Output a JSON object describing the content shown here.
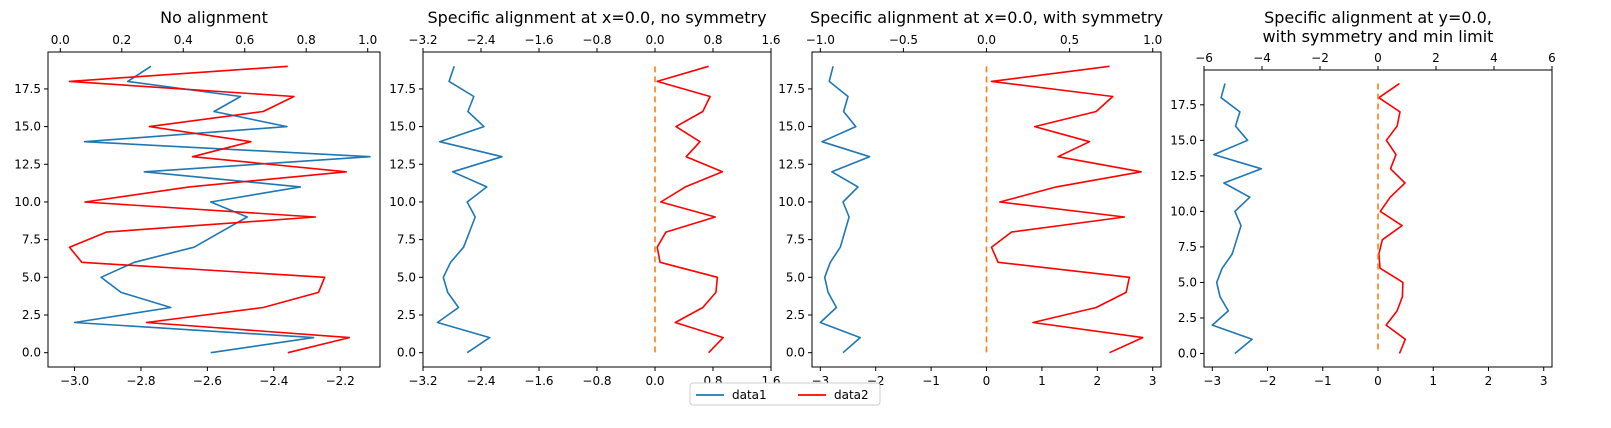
{
  "chart_data": [
    {
      "type": "line",
      "title": [
        "No alignment"
      ],
      "x_bottom": {
        "lim": [
          -3.08,
          -2.08
        ],
        "ticks": [
          -3.0,
          -2.8,
          -2.6,
          -2.4,
          -2.2
        ],
        "labels": [
          "−3.0",
          "−2.8",
          "−2.6",
          "−2.4",
          "−2.2"
        ]
      },
      "x_top": {
        "lim": [
          -0.04,
          1.04
        ],
        "ticks": [
          0.0,
          0.2,
          0.4,
          0.6,
          0.8,
          1.0
        ],
        "labels": [
          "0.0",
          "0.2",
          "0.4",
          "0.6",
          "0.8",
          "1.0"
        ]
      },
      "y": {
        "lim": [
          -0.95,
          19.95
        ],
        "ticks": [
          0,
          2.5,
          5,
          7.5,
          10,
          12.5,
          15,
          17.5
        ],
        "labels": [
          "0.0",
          "2.5",
          "5.0",
          "7.5",
          "10.0",
          "12.5",
          "15.0",
          "17.5"
        ]
      },
      "series": [
        {
          "name": "data1",
          "color": "#1f77b4",
          "axis": "bottom",
          "x": [
            -2.59,
            -2.28,
            -3.0,
            -2.71,
            -2.86,
            -2.92,
            -2.82,
            -2.64,
            -2.56,
            -2.48,
            -2.59,
            -2.32,
            -2.79,
            -2.11,
            -2.97,
            -2.36,
            -2.58,
            -2.5,
            -2.84,
            -2.77
          ],
          "y": [
            0,
            1,
            2,
            3,
            4,
            5,
            6,
            7,
            8,
            9,
            10,
            11,
            12,
            13,
            14,
            15,
            16,
            17,
            18,
            19
          ]
        },
        {
          "name": "data2",
          "color": "#ff0000",
          "axis": "top",
          "x": [
            0.74,
            0.94,
            0.28,
            0.66,
            0.84,
            0.86,
            0.07,
            0.03,
            0.15,
            0.83,
            0.08,
            0.42,
            0.93,
            0.43,
            0.62,
            0.29,
            0.66,
            0.76,
            0.03,
            0.74
          ],
          "y": [
            0,
            1,
            2,
            3,
            4,
            5,
            6,
            7,
            8,
            9,
            10,
            11,
            12,
            13,
            14,
            15,
            16,
            17,
            18,
            19
          ]
        }
      ]
    },
    {
      "type": "line",
      "title": [
        "Specific alignment at x=0.0, no symmetry"
      ],
      "x_bottom": {
        "lim": [
          -3.2,
          1.6
        ],
        "ticks": [
          -3.2,
          -2.4,
          -1.6,
          -0.8,
          0.0,
          0.8,
          1.6
        ],
        "labels": [
          "−3.2",
          "−2.4",
          "−1.6",
          "−0.8",
          "0.0",
          "0.8",
          "1.6"
        ]
      },
      "x_top": {
        "lim": [
          -3.2,
          1.6
        ],
        "ticks": [
          -3.2,
          -2.4,
          -1.6,
          -0.8,
          0.0,
          0.8,
          1.6
        ],
        "labels": [
          "−3.2",
          "−2.4",
          "−1.6",
          "−0.8",
          "0.0",
          "0.8",
          "1.6"
        ]
      },
      "y": {
        "lim": [
          -0.95,
          19.95
        ],
        "ticks": [
          0,
          2.5,
          5,
          7.5,
          10,
          12.5,
          15,
          17.5
        ],
        "labels": [
          "0.0",
          "2.5",
          "5.0",
          "7.5",
          "10.0",
          "12.5",
          "15.0",
          "17.5"
        ]
      },
      "vline": {
        "x": 0.0,
        "color": "#ff7f0e",
        "ymin": 0,
        "ymax": 19
      },
      "series": [
        {
          "name": "data1",
          "color": "#1f77b4",
          "axis": "bottom",
          "x": [
            -2.59,
            -2.28,
            -3.0,
            -2.71,
            -2.86,
            -2.92,
            -2.82,
            -2.64,
            -2.56,
            -2.48,
            -2.59,
            -2.32,
            -2.79,
            -2.11,
            -2.97,
            -2.36,
            -2.58,
            -2.5,
            -2.84,
            -2.77
          ],
          "y": [
            0,
            1,
            2,
            3,
            4,
            5,
            6,
            7,
            8,
            9,
            10,
            11,
            12,
            13,
            14,
            15,
            16,
            17,
            18,
            19
          ]
        },
        {
          "name": "data2",
          "color": "#ff0000",
          "axis": "top",
          "x": [
            0.74,
            0.94,
            0.28,
            0.66,
            0.84,
            0.86,
            0.07,
            0.03,
            0.15,
            0.83,
            0.08,
            0.42,
            0.93,
            0.43,
            0.62,
            0.29,
            0.66,
            0.76,
            0.03,
            0.74
          ],
          "y": [
            0,
            1,
            2,
            3,
            4,
            5,
            6,
            7,
            8,
            9,
            10,
            11,
            12,
            13,
            14,
            15,
            16,
            17,
            18,
            19
          ]
        }
      ]
    },
    {
      "type": "line",
      "title": [
        "Specific alignment at x=0.0, with symmetry"
      ],
      "x_bottom": {
        "lim": [
          -3.15,
          3.15
        ],
        "ticks": [
          -3,
          -2,
          -1,
          0,
          1,
          2,
          3
        ],
        "labels": [
          "−3",
          "−2",
          "−1",
          "0",
          "1",
          "2",
          "3"
        ]
      },
      "x_top": {
        "lim": [
          -1.05,
          1.05
        ],
        "ticks": [
          -1.0,
          -0.5,
          0.0,
          0.5,
          1.0
        ],
        "labels": [
          "−1.0",
          "−0.5",
          "0.0",
          "0.5",
          "1.0"
        ]
      },
      "y": {
        "lim": [
          -0.95,
          19.95
        ],
        "ticks": [
          0,
          2.5,
          5,
          7.5,
          10,
          12.5,
          15,
          17.5
        ],
        "labels": [
          "0.0",
          "2.5",
          "5.0",
          "7.5",
          "10.0",
          "12.5",
          "15.0",
          "17.5"
        ]
      },
      "vline": {
        "x": 0.0,
        "color": "#ff7f0e",
        "ymin": 0,
        "ymax": 19
      },
      "series": [
        {
          "name": "data1",
          "color": "#1f77b4",
          "axis": "bottom",
          "x": [
            -2.59,
            -2.28,
            -3.0,
            -2.71,
            -2.86,
            -2.92,
            -2.82,
            -2.64,
            -2.56,
            -2.48,
            -2.59,
            -2.32,
            -2.79,
            -2.11,
            -2.97,
            -2.36,
            -2.58,
            -2.5,
            -2.84,
            -2.77
          ],
          "y": [
            0,
            1,
            2,
            3,
            4,
            5,
            6,
            7,
            8,
            9,
            10,
            11,
            12,
            13,
            14,
            15,
            16,
            17,
            18,
            19
          ]
        },
        {
          "name": "data2",
          "color": "#ff0000",
          "axis": "top",
          "x": [
            0.74,
            0.94,
            0.28,
            0.66,
            0.84,
            0.86,
            0.07,
            0.03,
            0.15,
            0.83,
            0.08,
            0.42,
            0.93,
            0.43,
            0.62,
            0.29,
            0.66,
            0.76,
            0.03,
            0.74
          ],
          "y": [
            0,
            1,
            2,
            3,
            4,
            5,
            6,
            7,
            8,
            9,
            10,
            11,
            12,
            13,
            14,
            15,
            16,
            17,
            18,
            19
          ]
        }
      ]
    },
    {
      "type": "line",
      "title": [
        "Specific alignment at y=0.0,",
        "with symmetry and min limit"
      ],
      "x_bottom": {
        "lim": [
          -3.15,
          3.15
        ],
        "ticks": [
          -3,
          -2,
          -1,
          0,
          1,
          2,
          3
        ],
        "labels": [
          "−3",
          "−2",
          "−1",
          "0",
          "1",
          "2",
          "3"
        ]
      },
      "x_top": {
        "lim": [
          -6,
          6
        ],
        "ticks": [
          -6,
          -4,
          -2,
          0,
          2,
          4,
          6
        ],
        "labels": [
          "−6",
          "−4",
          "−2",
          "0",
          "2",
          "4",
          "6"
        ]
      },
      "y": {
        "lim": [
          -0.95,
          19.95
        ],
        "ticks": [
          0,
          2.5,
          5,
          7.5,
          10,
          12.5,
          15,
          17.5
        ],
        "labels": [
          "0.0",
          "2.5",
          "5.0",
          "7.5",
          "10.0",
          "12.5",
          "15.0",
          "17.5"
        ]
      },
      "vline": {
        "x": 0.0,
        "color": "#ff7f0e",
        "ymin": 0,
        "ymax": 19
      },
      "series": [
        {
          "name": "data1",
          "color": "#1f77b4",
          "axis": "bottom",
          "x": [
            -2.59,
            -2.28,
            -3.0,
            -2.71,
            -2.86,
            -2.92,
            -2.82,
            -2.64,
            -2.56,
            -2.48,
            -2.59,
            -2.32,
            -2.79,
            -2.11,
            -2.97,
            -2.36,
            -2.58,
            -2.5,
            -2.84,
            -2.77
          ],
          "y": [
            0,
            1,
            2,
            3,
            4,
            5,
            6,
            7,
            8,
            9,
            10,
            11,
            12,
            13,
            14,
            15,
            16,
            17,
            18,
            19
          ]
        },
        {
          "name": "data2",
          "color": "#ff0000",
          "axis": "top",
          "x": [
            0.74,
            0.94,
            0.28,
            0.66,
            0.84,
            0.86,
            0.07,
            0.03,
            0.15,
            0.83,
            0.08,
            0.42,
            0.93,
            0.43,
            0.62,
            0.29,
            0.66,
            0.76,
            0.03,
            0.74
          ],
          "y": [
            0,
            1,
            2,
            3,
            4,
            5,
            6,
            7,
            8,
            9,
            10,
            11,
            12,
            13,
            14,
            15,
            16,
            17,
            18,
            19
          ]
        }
      ]
    }
  ],
  "legend": {
    "placement": "bottom-center",
    "entries": [
      {
        "label": "data1",
        "color": "#1f77b4"
      },
      {
        "label": "data2",
        "color": "#ff0000"
      }
    ]
  }
}
